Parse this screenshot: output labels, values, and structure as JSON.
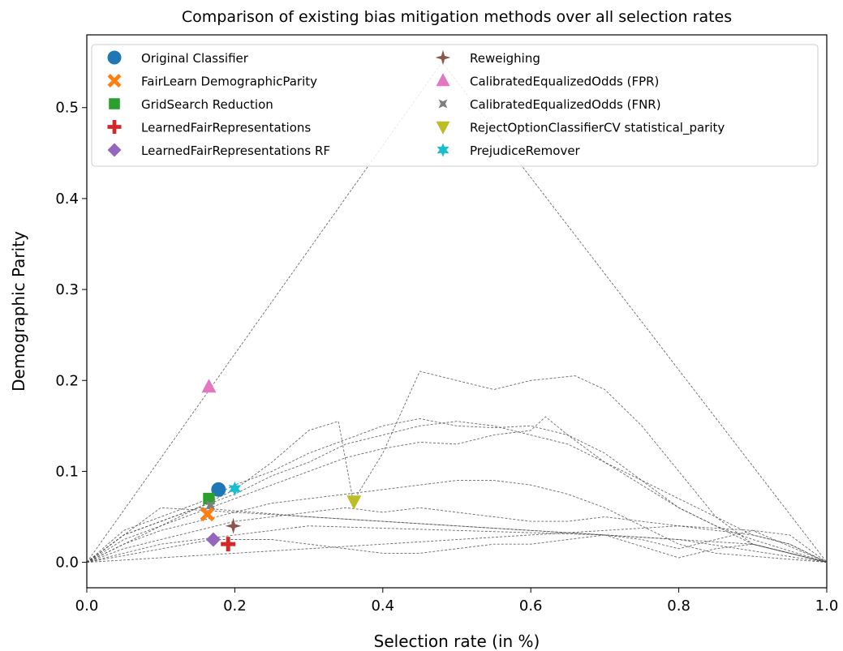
{
  "chart_data": {
    "type": "scatter",
    "title": "Comparison of existing bias mitigation methods over all selection rates",
    "xlabel": "Selection rate (in %)",
    "ylabel": "Demographic Parity",
    "xlim": [
      0.0,
      1.0
    ],
    "ylim": [
      -0.028,
      0.58
    ],
    "xticks": [
      "0.0",
      "0.2",
      "0.4",
      "0.6",
      "0.8",
      "1.0"
    ],
    "yticks": [
      "0.0",
      "0.1",
      "0.2",
      "0.3",
      "0.4",
      "0.5"
    ],
    "grid": false,
    "legend_position": "top",
    "series": [
      {
        "name": "Original Classifier",
        "marker": "circle",
        "color": "#1f77b4",
        "x": 0.178,
        "y": 0.08
      },
      {
        "name": "FairLearn DemographicParity",
        "marker": "x",
        "color": "#ff7f0e",
        "x": 0.163,
        "y": 0.053
      },
      {
        "name": "GridSearch Reduction",
        "marker": "square",
        "color": "#2ca02c",
        "x": 0.165,
        "y": 0.07
      },
      {
        "name": "LearnedFairRepresentations",
        "marker": "plus",
        "color": "#d62728",
        "x": 0.191,
        "y": 0.02
      },
      {
        "name": "LearnedFairRepresentations RF",
        "marker": "diamond",
        "color": "#9467bd",
        "x": 0.171,
        "y": 0.025
      },
      {
        "name": "Reweighing",
        "marker": "star4",
        "color": "#8c564b",
        "x": 0.198,
        "y": 0.04
      },
      {
        "name": "CalibratedEqualizedOdds (FPR)",
        "marker": "triangle-up",
        "color": "#e377c2",
        "x": 0.165,
        "y": 0.193
      },
      {
        "name": "CalibratedEqualizedOdds (FNR)",
        "marker": "x-thin",
        "color": "#7f7f7f",
        "x": 0.167,
        "y": 0.063
      },
      {
        "name": "RejectOptionClassifierCV statistical_parity",
        "marker": "triangle-down",
        "color": "#bcbd22",
        "x": 0.361,
        "y": 0.067
      },
      {
        "name": "PrejudiceRemover",
        "marker": "star6",
        "color": "#17becf",
        "x": 0.2,
        "y": 0.081
      }
    ],
    "curves": [
      {
        "points": [
          [
            0,
            0
          ],
          [
            0.48,
            0.55
          ],
          [
            1,
            0
          ]
        ]
      },
      {
        "points": [
          [
            0,
            0
          ],
          [
            0.05,
            0.03
          ],
          [
            0.1,
            0.045
          ],
          [
            0.15,
            0.06
          ],
          [
            0.2,
            0.08
          ],
          [
            0.25,
            0.11
          ],
          [
            0.3,
            0.145
          ],
          [
            0.34,
            0.155
          ],
          [
            0.36,
            0.067
          ],
          [
            0.4,
            0.12
          ],
          [
            0.45,
            0.21
          ],
          [
            0.5,
            0.2
          ],
          [
            0.55,
            0.19
          ],
          [
            0.6,
            0.2
          ],
          [
            0.66,
            0.205
          ],
          [
            0.7,
            0.19
          ],
          [
            0.75,
            0.15
          ],
          [
            0.8,
            0.1
          ],
          [
            0.85,
            0.05
          ],
          [
            0.9,
            0.02
          ],
          [
            1,
            0
          ]
        ]
      },
      {
        "points": [
          [
            0,
            0
          ],
          [
            0.05,
            0.035
          ],
          [
            0.1,
            0.05
          ],
          [
            0.15,
            0.065
          ],
          [
            0.2,
            0.085
          ],
          [
            0.25,
            0.1
          ],
          [
            0.3,
            0.12
          ],
          [
            0.35,
            0.135
          ],
          [
            0.4,
            0.15
          ],
          [
            0.45,
            0.158
          ],
          [
            0.5,
            0.15
          ],
          [
            0.55,
            0.148
          ],
          [
            0.6,
            0.15
          ],
          [
            0.65,
            0.14
          ],
          [
            0.7,
            0.11
          ],
          [
            0.75,
            0.09
          ],
          [
            0.8,
            0.07
          ],
          [
            0.85,
            0.05
          ],
          [
            0.9,
            0.03
          ],
          [
            0.95,
            0.02
          ],
          [
            1,
            0
          ]
        ]
      },
      {
        "points": [
          [
            0,
            0
          ],
          [
            0.05,
            0.03
          ],
          [
            0.1,
            0.045
          ],
          [
            0.15,
            0.06
          ],
          [
            0.2,
            0.075
          ],
          [
            0.25,
            0.095
          ],
          [
            0.3,
            0.11
          ],
          [
            0.35,
            0.13
          ],
          [
            0.4,
            0.14
          ],
          [
            0.45,
            0.15
          ],
          [
            0.5,
            0.155
          ],
          [
            0.55,
            0.15
          ],
          [
            0.6,
            0.14
          ],
          [
            0.65,
            0.13
          ],
          [
            0.7,
            0.11
          ],
          [
            0.75,
            0.085
          ],
          [
            0.8,
            0.06
          ],
          [
            0.85,
            0.04
          ],
          [
            0.9,
            0.025
          ],
          [
            1,
            0
          ]
        ]
      },
      {
        "points": [
          [
            0,
            0
          ],
          [
            0.05,
            0.025
          ],
          [
            0.1,
            0.04
          ],
          [
            0.15,
            0.055
          ],
          [
            0.2,
            0.07
          ],
          [
            0.25,
            0.085
          ],
          [
            0.3,
            0.1
          ],
          [
            0.35,
            0.115
          ],
          [
            0.4,
            0.125
          ],
          [
            0.45,
            0.132
          ],
          [
            0.5,
            0.13
          ],
          [
            0.55,
            0.14
          ],
          [
            0.6,
            0.145
          ],
          [
            0.62,
            0.16
          ],
          [
            0.65,
            0.14
          ],
          [
            0.7,
            0.12
          ],
          [
            0.75,
            0.09
          ],
          [
            0.8,
            0.06
          ],
          [
            0.85,
            0.04
          ],
          [
            0.9,
            0.02
          ],
          [
            1,
            0
          ]
        ]
      },
      {
        "points": [
          [
            0,
            0
          ],
          [
            0.05,
            0.02
          ],
          [
            0.1,
            0.035
          ],
          [
            0.15,
            0.045
          ],
          [
            0.2,
            0.055
          ],
          [
            0.25,
            0.065
          ],
          [
            0.3,
            0.07
          ],
          [
            0.35,
            0.075
          ],
          [
            0.4,
            0.08
          ],
          [
            0.45,
            0.085
          ],
          [
            0.5,
            0.09
          ],
          [
            0.55,
            0.09
          ],
          [
            0.6,
            0.085
          ],
          [
            0.65,
            0.075
          ],
          [
            0.7,
            0.06
          ],
          [
            0.75,
            0.04
          ],
          [
            0.8,
            0.02
          ],
          [
            0.85,
            0.01
          ],
          [
            1,
            0
          ]
        ]
      },
      {
        "points": [
          [
            0,
            0
          ],
          [
            0.05,
            0.015
          ],
          [
            0.1,
            0.025
          ],
          [
            0.15,
            0.035
          ],
          [
            0.2,
            0.045
          ],
          [
            0.25,
            0.05
          ],
          [
            0.3,
            0.055
          ],
          [
            0.35,
            0.06
          ],
          [
            0.4,
            0.055
          ],
          [
            0.45,
            0.06
          ],
          [
            0.5,
            0.055
          ],
          [
            0.55,
            0.05
          ],
          [
            0.6,
            0.045
          ],
          [
            0.65,
            0.045
          ],
          [
            0.7,
            0.05
          ],
          [
            0.75,
            0.045
          ],
          [
            0.8,
            0.04
          ],
          [
            0.85,
            0.035
          ],
          [
            0.9,
            0.03
          ],
          [
            0.95,
            0.02
          ],
          [
            1,
            0
          ]
        ]
      },
      {
        "points": [
          [
            0,
            0
          ],
          [
            0.17,
            0.025
          ],
          [
            0.25,
            0.025
          ],
          [
            0.3,
            0.02
          ],
          [
            0.35,
            0.015
          ],
          [
            0.4,
            0.01
          ],
          [
            0.45,
            0.01
          ],
          [
            0.5,
            0.015
          ],
          [
            0.55,
            0.02
          ],
          [
            0.6,
            0.02
          ],
          [
            0.65,
            0.025
          ],
          [
            0.7,
            0.03
          ],
          [
            0.75,
            0.025
          ],
          [
            0.8,
            0.015
          ],
          [
            0.85,
            0.025
          ],
          [
            0.9,
            0.035
          ],
          [
            0.95,
            0.03
          ],
          [
            1,
            0
          ]
        ]
      },
      {
        "points": [
          [
            0,
            0
          ],
          [
            0.2,
            0.01
          ],
          [
            0.4,
            0.02
          ],
          [
            0.6,
            0.03
          ],
          [
            0.8,
            0.04
          ],
          [
            0.9,
            0.035
          ],
          [
            1,
            0
          ]
        ]
      },
      {
        "points": [
          [
            0,
            0
          ],
          [
            0.1,
            0.02
          ],
          [
            0.3,
            0.04
          ],
          [
            0.5,
            0.035
          ],
          [
            0.7,
            0.03
          ],
          [
            0.9,
            0.02
          ],
          [
            1,
            0
          ]
        ]
      },
      {
        "points": [
          [
            0,
            0
          ],
          [
            0.1,
            0.06
          ],
          [
            0.2,
            0.055
          ],
          [
            0.4,
            0.045
          ],
          [
            0.6,
            0.035
          ],
          [
            0.8,
            0.025
          ],
          [
            1,
            0
          ]
        ]
      },
      {
        "points": [
          [
            0,
            0
          ],
          [
            0.15,
            0.06
          ],
          [
            0.3,
            0.05
          ],
          [
            0.5,
            0.04
          ],
          [
            0.7,
            0.03
          ],
          [
            0.8,
            0.005
          ],
          [
            0.85,
            0.015
          ],
          [
            0.9,
            0.02
          ],
          [
            1,
            0
          ]
        ]
      }
    ]
  }
}
